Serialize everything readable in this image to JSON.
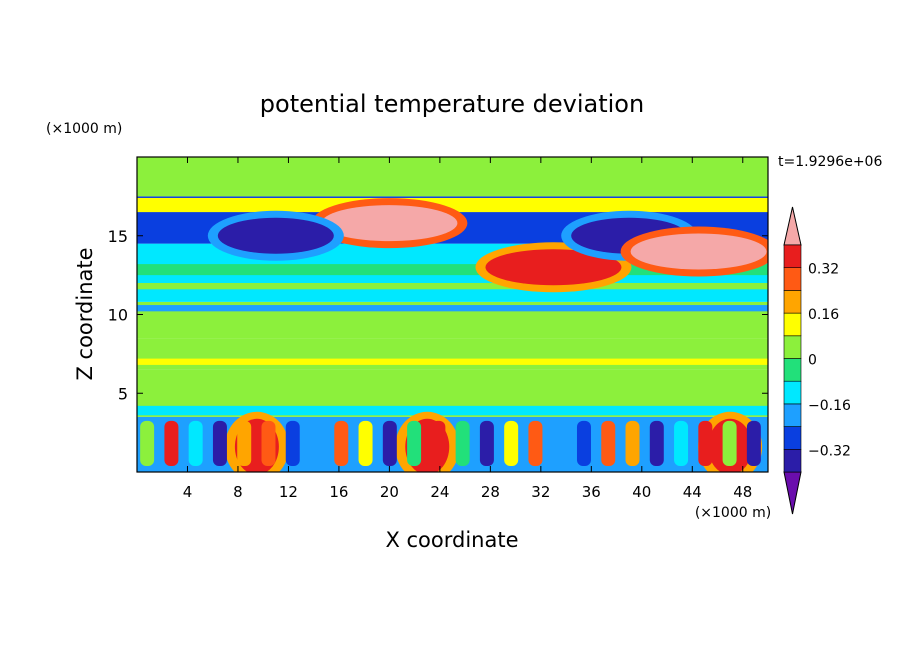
{
  "chart_data": {
    "type": "heatmap",
    "title": "potential temperature deviation",
    "xlabel": "X coordinate",
    "ylabel": "Z coordinate",
    "x_unit_label": "(×1000 m)",
    "y_unit_label": "(×1000 m)",
    "time_label": "t=1.9296e+06",
    "xlim": [
      0,
      50
    ],
    "ylim": [
      0,
      20
    ],
    "x_ticks": [
      4,
      8,
      12,
      16,
      20,
      24,
      28,
      32,
      36,
      40,
      44,
      48
    ],
    "y_ticks": [
      5,
      10,
      15
    ],
    "colorbar": {
      "levels": [
        -0.4,
        -0.32,
        -0.24,
        -0.16,
        -0.08,
        0,
        0.08,
        0.16,
        0.24,
        0.32,
        0.4
      ],
      "labels": [
        {
          "value": 0.32,
          "text": "0.32"
        },
        {
          "value": 0.16,
          "text": "0.16"
        },
        {
          "value": 0,
          "text": "0"
        },
        {
          "value": -0.16,
          "text": "−0.16"
        },
        {
          "value": -0.32,
          "text": "−0.32"
        }
      ],
      "colors_low_to_high": [
        "#6a0dad",
        "#2b1da8",
        "#0a3fe0",
        "#1ea0ff",
        "#00e8ff",
        "#22e07a",
        "#8cf03c",
        "#ffff00",
        "#ffa500",
        "#ff5a14",
        "#e81e1e",
        "#f5a8a8"
      ]
    },
    "bands": [
      {
        "z": [
          0,
          3.5
        ],
        "value": -0.24,
        "note": "near-surface turbulent layer, mixed warm/cold cells"
      },
      {
        "z": [
          3.5,
          6.5
        ],
        "value": 0.0
      },
      {
        "z": [
          6.5,
          8.5
        ],
        "value": 0.04
      },
      {
        "z": [
          8.5,
          10.8
        ],
        "value": 0.0
      },
      {
        "z": [
          10.8,
          14.5
        ],
        "value": -0.12
      },
      {
        "z": [
          14.5,
          17.5
        ],
        "value": -0.32
      },
      {
        "z": [
          17.5,
          20
        ],
        "value": 0.04
      }
    ],
    "features": [
      {
        "kind": "warm-max",
        "x": 20,
        "z": 15.8,
        "value": 0.4
      },
      {
        "kind": "warm-max",
        "x": 33,
        "z": 13,
        "value": 0.36
      },
      {
        "kind": "cold-min",
        "x": 11,
        "z": 15,
        "value": -0.4
      },
      {
        "kind": "cold-min",
        "x": 39,
        "z": 15,
        "value": -0.4
      },
      {
        "kind": "warm-max",
        "x": 44.5,
        "z": 14,
        "value": 0.4
      },
      {
        "kind": "warm-max",
        "x": 9.5,
        "z": 1.6,
        "value": 0.32
      },
      {
        "kind": "warm-max",
        "x": 23,
        "z": 1.6,
        "value": 0.32
      },
      {
        "kind": "warm-max",
        "x": 47,
        "z": 1.6,
        "value": 0.32
      }
    ]
  },
  "colors": {
    "frame": "#000000",
    "background": "#ffffff"
  }
}
